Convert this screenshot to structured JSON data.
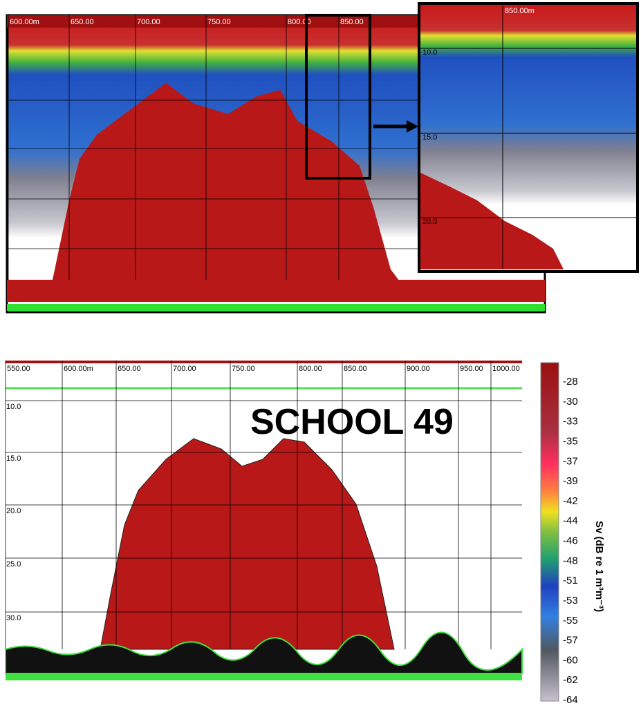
{
  "top_panel": {
    "ruler": [
      "600.00m",
      "650.00",
      "700.00",
      "750.00",
      "800.00",
      "850.00"
    ]
  },
  "inset": {
    "ruler": [
      "850.00m"
    ],
    "depths": [
      "10.0",
      "15.0",
      "20.0"
    ]
  },
  "bottom_panel": {
    "ruler": [
      "550.00",
      "600.00m",
      "650.00",
      "700.00",
      "750.00",
      "800.00",
      "850.00",
      "900.00",
      "950.00",
      "1000.00"
    ],
    "depths": [
      "10.0",
      "15.0",
      "20.0",
      "25.0",
      "30.0"
    ],
    "label": "SCHOOL 49"
  },
  "colorbar": {
    "title": "Sv (dB re 1 m³m⁻³)",
    "ticks": [
      -28,
      -30,
      -33,
      -35,
      -37,
      -39,
      -42,
      -44,
      -46,
      -48,
      -51,
      -53,
      -55,
      -57,
      -60,
      -62,
      -64
    ]
  }
}
